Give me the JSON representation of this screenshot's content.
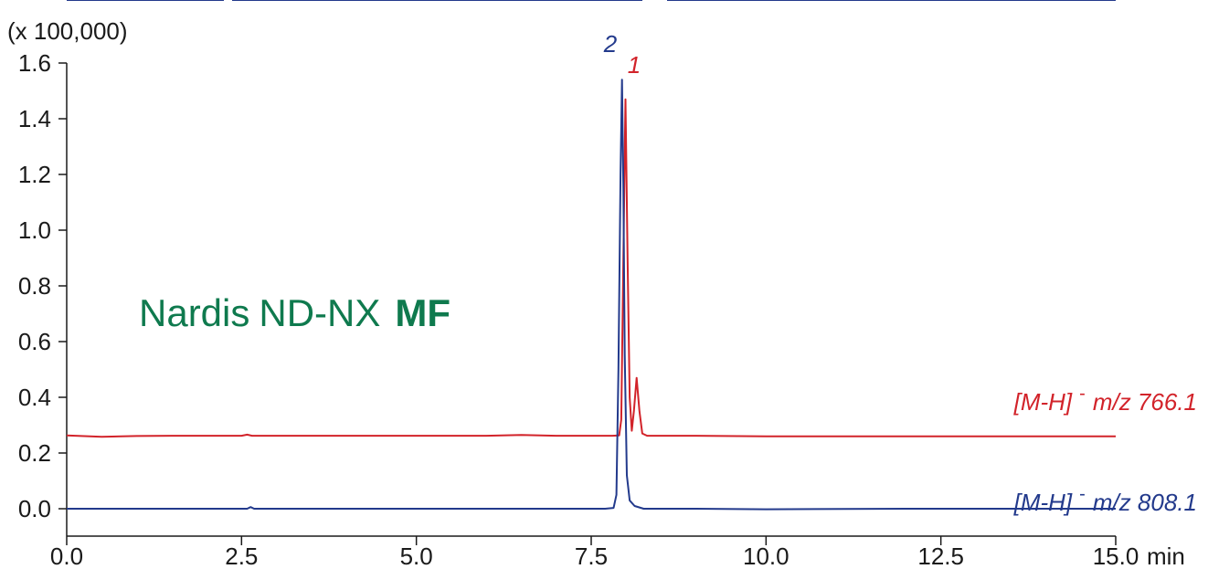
{
  "chart_data": {
    "type": "line",
    "y_multiplier_label": "(x 100,000)",
    "x_unit": "min",
    "xlim": [
      0.0,
      15.0
    ],
    "ylim": [
      0.0,
      1.6
    ],
    "x_ticks": [
      "0.0",
      "2.5",
      "5.0",
      "7.5",
      "10.0",
      "12.5",
      "15.0"
    ],
    "y_ticks": [
      "0.0",
      "0.2",
      "0.4",
      "0.6",
      "0.8",
      "1.0",
      "1.2",
      "1.4",
      "1.6"
    ],
    "grid": false,
    "series": [
      {
        "name": "[M-H]⁻ m/z 766.1",
        "label_prefix": "[M-H]",
        "label_sup": "-",
        "label_suffix": "m/z 766.1",
        "color": "#d2232a",
        "peak_label": "1",
        "points": [
          [
            0.0,
            0.263
          ],
          [
            0.5,
            0.258
          ],
          [
            1.0,
            0.261
          ],
          [
            1.5,
            0.262
          ],
          [
            2.0,
            0.262
          ],
          [
            2.5,
            0.262
          ],
          [
            2.58,
            0.266
          ],
          [
            2.65,
            0.262
          ],
          [
            3.0,
            0.262
          ],
          [
            4.0,
            0.262
          ],
          [
            5.0,
            0.262
          ],
          [
            6.0,
            0.262
          ],
          [
            6.5,
            0.265
          ],
          [
            7.0,
            0.262
          ],
          [
            7.5,
            0.262
          ],
          [
            7.8,
            0.262
          ],
          [
            7.9,
            0.263
          ],
          [
            7.93,
            0.32
          ],
          [
            7.96,
            0.9
          ],
          [
            7.99,
            1.47
          ],
          [
            8.02,
            0.9
          ],
          [
            8.05,
            0.4
          ],
          [
            8.08,
            0.28
          ],
          [
            8.11,
            0.35
          ],
          [
            8.15,
            0.47
          ],
          [
            8.19,
            0.35
          ],
          [
            8.23,
            0.27
          ],
          [
            8.3,
            0.262
          ],
          [
            9.0,
            0.262
          ],
          [
            10.0,
            0.26
          ],
          [
            12.0,
            0.26
          ],
          [
            15.0,
            0.26
          ]
        ]
      },
      {
        "name": "[M-H]⁻ m/z 808.1",
        "label_prefix": "[M-H]",
        "label_sup": "-",
        "label_suffix": "m/z 808.1",
        "color": "#233a8c",
        "peak_label": "2",
        "points": [
          [
            0.0,
            0.0
          ],
          [
            1.0,
            0.0
          ],
          [
            2.0,
            0.0
          ],
          [
            2.58,
            0.0
          ],
          [
            2.63,
            0.006
          ],
          [
            2.68,
            0.0
          ],
          [
            3.0,
            0.0
          ],
          [
            5.0,
            0.0
          ],
          [
            7.0,
            0.0
          ],
          [
            7.7,
            0.0
          ],
          [
            7.82,
            0.003
          ],
          [
            7.86,
            0.05
          ],
          [
            7.89,
            0.5
          ],
          [
            7.92,
            1.2
          ],
          [
            7.94,
            1.54
          ],
          [
            7.96,
            1.15
          ],
          [
            7.98,
            0.55
          ],
          [
            8.01,
            0.12
          ],
          [
            8.05,
            0.03
          ],
          [
            8.12,
            0.01
          ],
          [
            8.25,
            0.0
          ],
          [
            9.0,
            0.0
          ],
          [
            10.0,
            -0.002
          ],
          [
            12.0,
            0.0
          ],
          [
            15.0,
            0.0
          ]
        ]
      }
    ],
    "annotation": {
      "part1": "Nardis",
      "part2": "ND-NX",
      "part3": "MF"
    }
  }
}
